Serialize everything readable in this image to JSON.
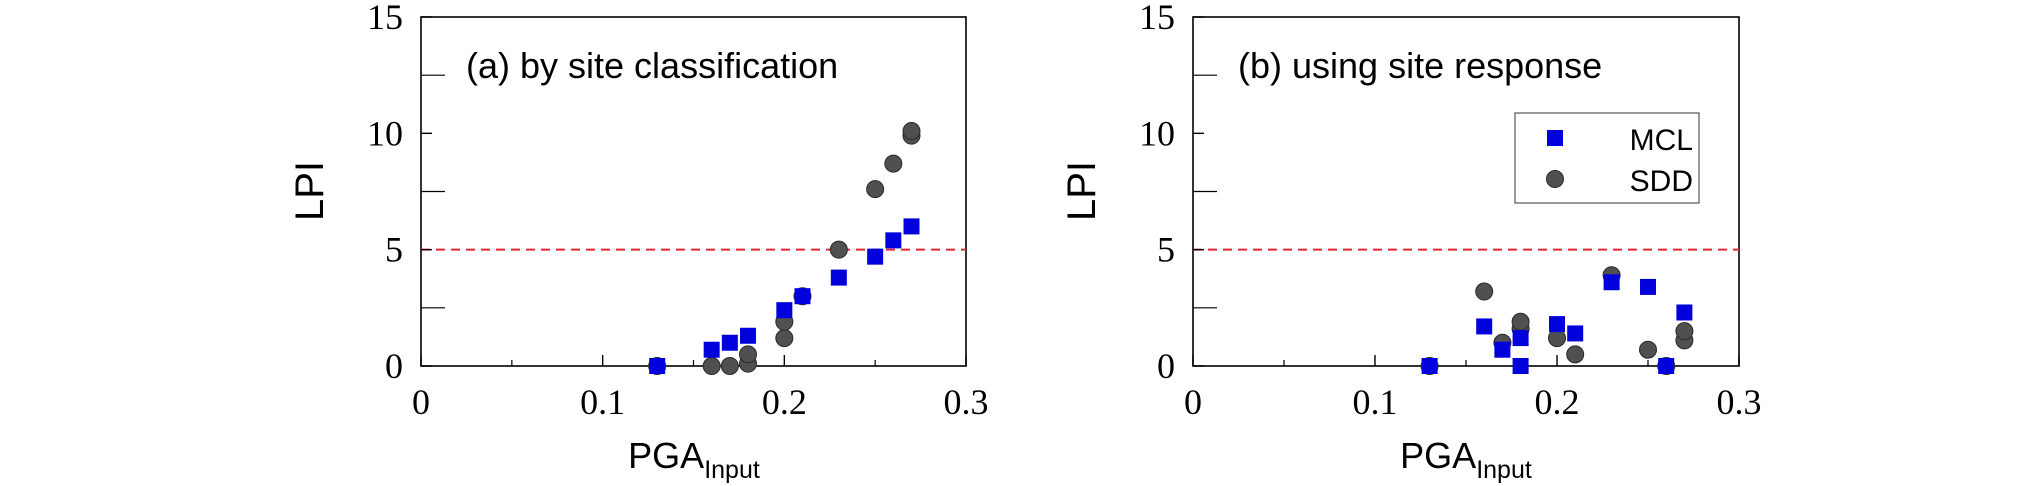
{
  "colors": {
    "mcl": "#0000dd",
    "sdd": "#505050",
    "threshold": "#e32636",
    "axis": "#000000"
  },
  "chart_data": [
    {
      "type": "scatter",
      "title": "(a) by site classification",
      "xlabel_main": "PGA",
      "xlabel_sub": "Input",
      "ylabel": "LPI",
      "xlim": [
        0,
        0.3
      ],
      "ylim": [
        0,
        15
      ],
      "xticks": [
        "0",
        "0.1",
        "0.2",
        "0.3"
      ],
      "yticks": [
        "0",
        "5",
        "10",
        "15"
      ],
      "threshold": 5,
      "legend": null,
      "series": [
        {
          "name": "MCL",
          "marker": "square",
          "points": [
            [
              0.13,
              0
            ],
            [
              0.16,
              0.7
            ],
            [
              0.17,
              1.0
            ],
            [
              0.18,
              1.3
            ],
            [
              0.2,
              2.4
            ],
            [
              0.21,
              3.0
            ],
            [
              0.23,
              3.8
            ],
            [
              0.25,
              4.7
            ],
            [
              0.26,
              5.4
            ],
            [
              0.27,
              6.0
            ]
          ]
        },
        {
          "name": "SDD",
          "marker": "circle",
          "points": [
            [
              0.13,
              0
            ],
            [
              0.16,
              0
            ],
            [
              0.17,
              0
            ],
            [
              0.18,
              0.1
            ],
            [
              0.18,
              0.5
            ],
            [
              0.2,
              1.2
            ],
            [
              0.2,
              1.9
            ],
            [
              0.21,
              3.0
            ],
            [
              0.23,
              5.0
            ],
            [
              0.25,
              7.6
            ],
            [
              0.26,
              8.7
            ],
            [
              0.27,
              9.9
            ],
            [
              0.27,
              10.1
            ]
          ]
        }
      ]
    },
    {
      "type": "scatter",
      "title": "(b) using site response",
      "xlabel_main": "PGA",
      "xlabel_sub": "Input",
      "ylabel": "LPI",
      "xlim": [
        0,
        0.3
      ],
      "ylim": [
        0,
        15
      ],
      "xticks": [
        "0",
        "0.1",
        "0.2",
        "0.3"
      ],
      "yticks": [
        "0",
        "5",
        "10",
        "15"
      ],
      "threshold": 5,
      "legend": {
        "position": "top-right",
        "entries": [
          "MCL",
          "SDD"
        ]
      },
      "series": [
        {
          "name": "MCL",
          "marker": "square",
          "points": [
            [
              0.13,
              0
            ],
            [
              0.16,
              1.7
            ],
            [
              0.17,
              0.7
            ],
            [
              0.18,
              1.2
            ],
            [
              0.18,
              0
            ],
            [
              0.2,
              1.8
            ],
            [
              0.21,
              1.4
            ],
            [
              0.23,
              3.6
            ],
            [
              0.25,
              3.4
            ],
            [
              0.26,
              0
            ],
            [
              0.27,
              2.3
            ]
          ]
        },
        {
          "name": "SDD",
          "marker": "circle",
          "points": [
            [
              0.13,
              0
            ],
            [
              0.16,
              3.2
            ],
            [
              0.17,
              1.0
            ],
            [
              0.18,
              1.6
            ],
            [
              0.18,
              1.9
            ],
            [
              0.2,
              1.2
            ],
            [
              0.21,
              0.5
            ],
            [
              0.23,
              3.9
            ],
            [
              0.25,
              0.7
            ],
            [
              0.26,
              0
            ],
            [
              0.27,
              1.1
            ],
            [
              0.27,
              1.5
            ]
          ]
        }
      ]
    }
  ]
}
